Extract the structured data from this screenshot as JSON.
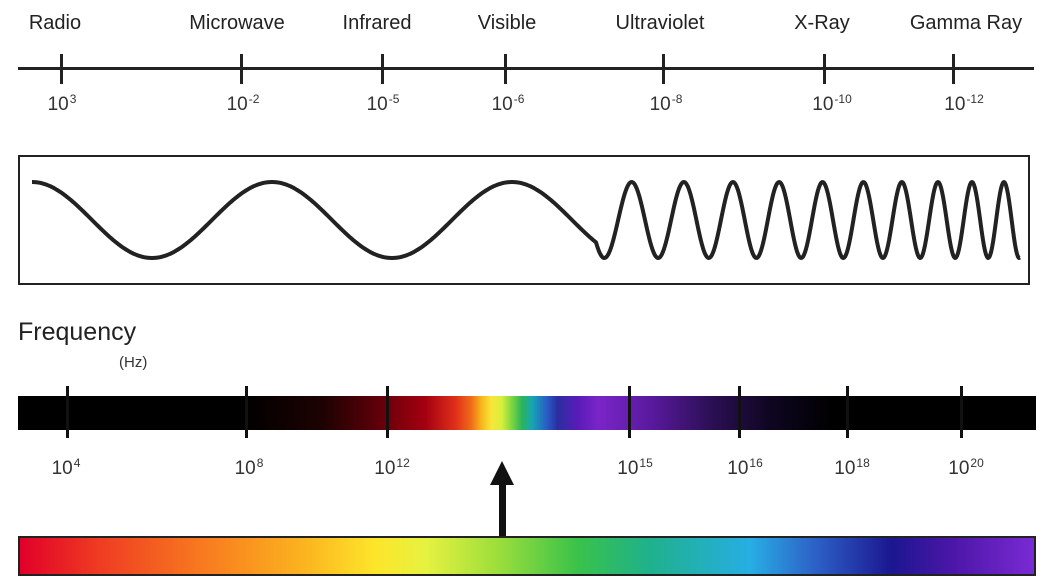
{
  "bands": [
    "Radio",
    "Microwave",
    "Infrared",
    "Visible",
    "Ultraviolet",
    "X-Ray",
    "Gamma Ray"
  ],
  "wavelengths": [
    {
      "base": "10",
      "exp": "3"
    },
    {
      "base": "10",
      "exp": "-2"
    },
    {
      "base": "10",
      "exp": "-5"
    },
    {
      "base": "10",
      "exp": "-6"
    },
    {
      "base": "10",
      "exp": "-8"
    },
    {
      "base": "10",
      "exp": "-10"
    },
    {
      "base": "10",
      "exp": "-12"
    }
  ],
  "frequency": {
    "title": "Frequency",
    "unit": "(Hz)",
    "ticks": [
      {
        "base": "10",
        "exp": "4"
      },
      {
        "base": "10",
        "exp": "8"
      },
      {
        "base": "10",
        "exp": "12"
      },
      {
        "base": "10",
        "exp": "15"
      },
      {
        "base": "10",
        "exp": "16"
      },
      {
        "base": "10",
        "exp": "18"
      },
      {
        "base": "10",
        "exp": "20"
      }
    ]
  },
  "colors": {
    "line": "#222222",
    "arrow": "#111111"
  }
}
